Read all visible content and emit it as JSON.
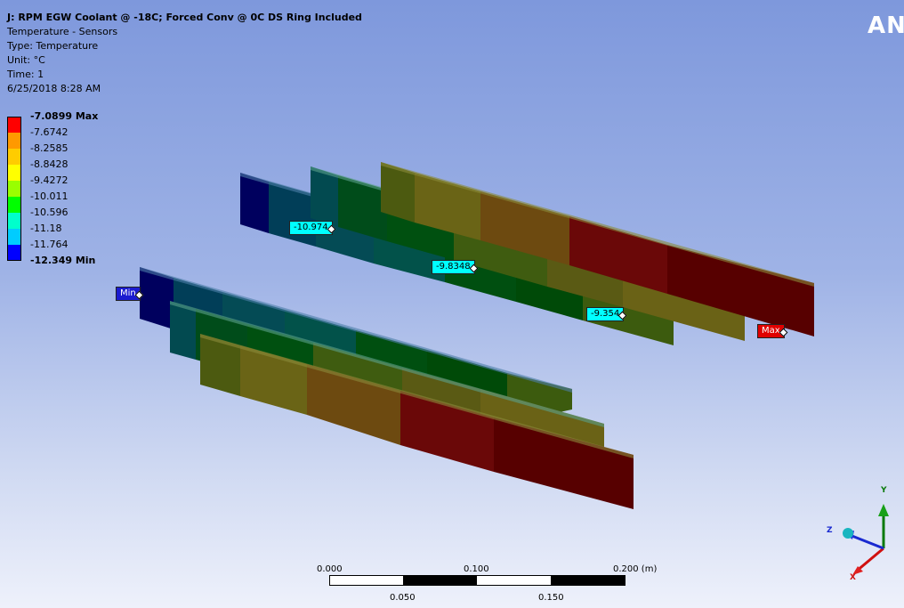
{
  "header": {
    "title": "J: RPM EGW Coolant @  -18C; Forced Conv @ 0C DS Ring Included",
    "subtitle": "Temperature - Sensors",
    "type_line": "Type: Temperature",
    "unit_line": "Unit: °C",
    "time_line": "Time: 1",
    "date_line": "6/25/2018 8:28 AM"
  },
  "brand": "ANS",
  "legend": {
    "labels": [
      "-7.0899 Max",
      "-7.6742",
      "-8.2585",
      "-8.8428",
      "-9.4272",
      "-10.011",
      "-10.596",
      "-11.18",
      "-11.764",
      "-12.349 Min"
    ],
    "colors": [
      "#ff0000",
      "#ff9900",
      "#ffcc00",
      "#ffff00",
      "#99ff00",
      "#00ff00",
      "#00ffcc",
      "#00ccff",
      "#0066ff",
      "#0000ff"
    ]
  },
  "probes": {
    "p1": "-10.974",
    "p2": "-9.8348",
    "p3": "-9.354",
    "min": "Min",
    "max": "Max"
  },
  "scale": {
    "top_labels": [
      "0.000",
      "0.100",
      "0.200 (m)"
    ],
    "bottom_labels": [
      "0.050",
      "0.150"
    ]
  },
  "triad": {
    "x": "X",
    "y": "Y",
    "z": "Z"
  }
}
